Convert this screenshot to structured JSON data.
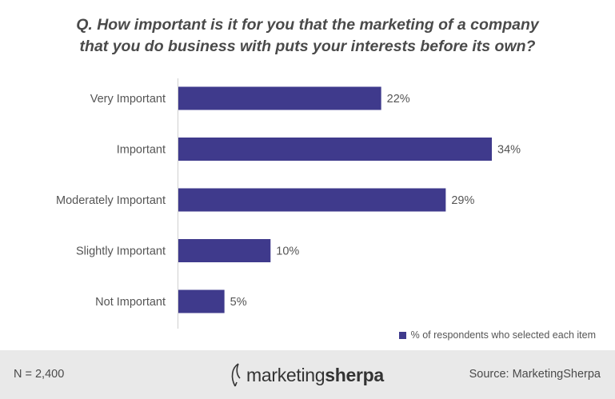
{
  "title_lines": [
    "Q. How important is it for you that the marketing of a company",
    "that you do business with puts your interests before its own?"
  ],
  "colors": {
    "bar": "#3f3a8c",
    "footer_bg": "#e9e9e9"
  },
  "chart_data": {
    "type": "bar",
    "orientation": "horizontal",
    "categories": [
      "Very Important",
      "Important",
      "Moderately Important",
      "Slightly Important",
      "Not Important"
    ],
    "series": [
      {
        "name": "% of respondents who selected each item",
        "values": [
          22,
          34,
          29,
          10,
          5
        ],
        "labels": [
          "22%",
          "34%",
          "29%",
          "10%",
          "5%"
        ]
      }
    ],
    "xlim": [
      0,
      34
    ],
    "grid": false,
    "legend_position": "bottom-right"
  },
  "legend": {
    "label": "% of respondents who selected each item"
  },
  "footer": {
    "sample": "N = 2,400",
    "logo_regular": "marketing",
    "logo_bold": "sherpa",
    "source": "Source: MarketingSherpa"
  }
}
